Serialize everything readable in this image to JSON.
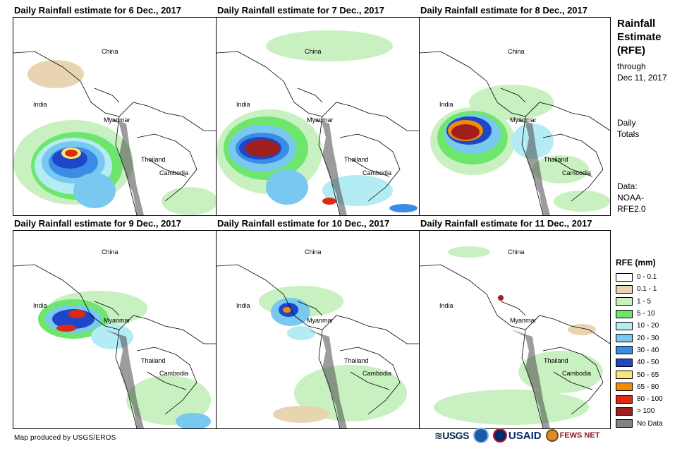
{
  "panels": [
    {
      "title": "Daily Rainfall estimate for 6 Dec., 2017",
      "labels": {
        "china": "China",
        "india": "India",
        "myanmar": "Myanmar",
        "thailand": "Thailand",
        "cambodia": "Cambodia"
      }
    },
    {
      "title": "Daily Rainfall estimate for 7 Dec., 2017",
      "labels": {
        "china": "China",
        "india": "India",
        "myanmar": "Myanmar",
        "thailand": "Thailand",
        "cambodia": "Cambodia"
      }
    },
    {
      "title": "Daily Rainfall estimate for 8 Dec., 2017",
      "labels": {
        "china": "China",
        "india": "India",
        "myanmar": "Myanmar",
        "thailand": "Thailand",
        "cambodia": "Cambodia"
      }
    },
    {
      "title": "Daily Rainfall estimate for 9 Dec., 2017",
      "labels": {
        "china": "China",
        "india": "India",
        "myanmar": "Myanmar",
        "thailand": "Thailand",
        "cambodia": "Cambodia"
      }
    },
    {
      "title": "Daily Rainfall estimate for 10 Dec., 2017",
      "labels": {
        "china": "China",
        "india": "India",
        "myanmar": "Myanmar",
        "thailand": "Thailand",
        "cambodia": "Cambodia"
      }
    },
    {
      "title": "Daily Rainfall estimate for 11 Dec., 2017",
      "labels": {
        "china": "China",
        "india": "India",
        "myanmar": "Myanmar",
        "thailand": "Thailand",
        "cambodia": "Cambodia"
      }
    }
  ],
  "sidebar": {
    "title_line1": "Rainfall",
    "title_line2": "Estimate",
    "title_line3": "(RFE)",
    "through_line1": "through",
    "through_line2": "Dec 11, 2017",
    "daily_line1": "Daily",
    "daily_line2": "Totals",
    "data_line1": "Data:",
    "data_line2": "NOAA-",
    "data_line3": "RFE2.0"
  },
  "legend": {
    "title": "RFE (mm)",
    "items": [
      {
        "label": "0 - 0.1",
        "color": "#ffffff"
      },
      {
        "label": "0.1 - 1",
        "color": "#e8d4b0"
      },
      {
        "label": "1 - 5",
        "color": "#c8f0c0"
      },
      {
        "label": "5 - 10",
        "color": "#6ee66e"
      },
      {
        "label": "10 - 20",
        "color": "#b4ecf4"
      },
      {
        "label": "20 - 30",
        "color": "#78c8f0"
      },
      {
        "label": "30 - 40",
        "color": "#3c8ce6"
      },
      {
        "label": "40 - 50",
        "color": "#1e46c8"
      },
      {
        "label": "50 - 65",
        "color": "#fae678"
      },
      {
        "label": "65 - 80",
        "color": "#f08c00"
      },
      {
        "label": "80 - 100",
        "color": "#dc2a14"
      },
      {
        "label": "> 100",
        "color": "#a01e1e"
      },
      {
        "label": "No Data",
        "color": "#828282"
      }
    ]
  },
  "credit": "Map produced by USGS/EROS",
  "logos": {
    "usgs": "≋USGS",
    "usaid": "USAID",
    "fews": "FEWS NET"
  }
}
